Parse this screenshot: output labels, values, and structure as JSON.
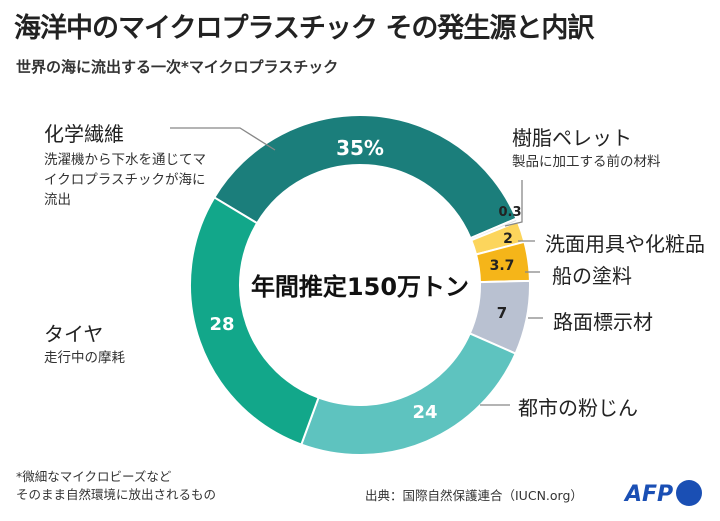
{
  "title": "海洋中のマイクロプラスチック その発生源と内訳",
  "subtitle": "世界の海に流出する一次*マイクロプラスチック",
  "chart_data": {
    "type": "donut",
    "center_label": "年間推定150万トン",
    "unit": "%",
    "series": [
      {
        "label": "化学繊維",
        "note": "洗濯機から下水を通じてマイクロプラスチックが海に流出",
        "value": 35,
        "display": "35%",
        "color": "#1b7e7b"
      },
      {
        "label": "樹脂ペレット",
        "note": "製品に加工する前の材料",
        "value": 0.3,
        "display": "0.3",
        "color": "#dfe3e6"
      },
      {
        "label": "洗面用具や化粧品",
        "value": 2,
        "display": "2",
        "color": "#fcd55c"
      },
      {
        "label": "船の塗料",
        "value": 3.7,
        "display": "3.7",
        "color": "#f5b519"
      },
      {
        "label": "路面標示材",
        "value": 7,
        "display": "7",
        "color": "#b9c1d1"
      },
      {
        "label": "都市の粉じん",
        "value": 24,
        "display": "24",
        "color": "#5ec3bf"
      },
      {
        "label": "タイヤ",
        "note": "走行中の摩耗",
        "value": 28,
        "display": "28",
        "color": "#12a78a"
      }
    ]
  },
  "footnote": [
    "*微細なマイクロビーズなど",
    "そのまま自然環境に放出されるもの"
  ],
  "source": "出典：国際自然保護連合（IUCN.org）",
  "logo": "AFP",
  "colors": {
    "logo": "#1a4fb4"
  }
}
